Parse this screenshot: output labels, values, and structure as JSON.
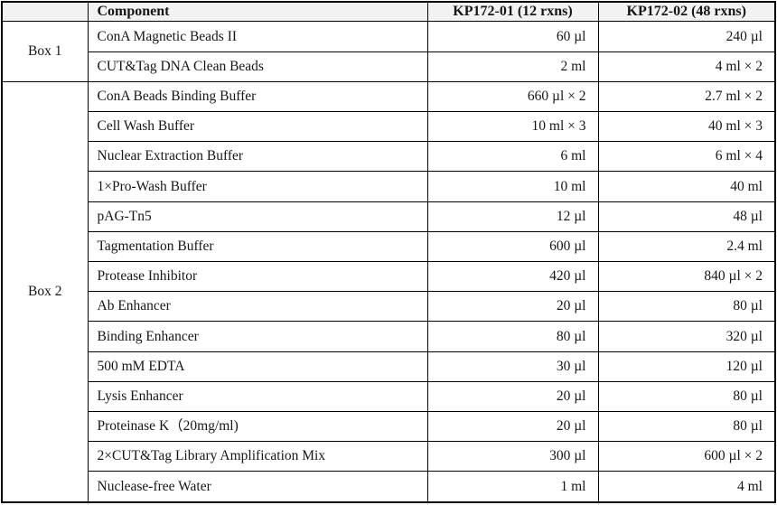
{
  "page": {
    "background_color": "#ffffff",
    "text_color": "#161616",
    "border_color": "#000000",
    "header_bg_color": "#f2f2f2"
  },
  "table": {
    "headers": {
      "box": "",
      "component": "Component",
      "col1": "KP172-01 (12 rxns)",
      "col2": "KP172-02 (48 rxns)"
    },
    "groups": [
      {
        "label": "Box 1",
        "rows": [
          {
            "component": "ConA Magnetic Beads II",
            "kp172_01": "60 µl",
            "kp172_02": "240 µl"
          },
          {
            "component": "CUT&Tag DNA Clean Beads",
            "kp172_01": "2 ml",
            "kp172_02": "4 ml × 2"
          }
        ]
      },
      {
        "label": "Box 2",
        "rows": [
          {
            "component": "ConA Beads Binding Buffer",
            "kp172_01": "660 µl × 2",
            "kp172_02": "2.7 ml × 2"
          },
          {
            "component": "Cell Wash Buffer",
            "kp172_01": "10 ml × 3",
            "kp172_02": "40 ml × 3"
          },
          {
            "component": "Nuclear Extraction Buffer",
            "kp172_01": "6 ml",
            "kp172_02": "6 ml × 4"
          },
          {
            "component": "1×Pro-Wash Buffer",
            "kp172_01": "10 ml",
            "kp172_02": "40 ml"
          },
          {
            "component": "pAG-Tn5",
            "kp172_01": "12 µl",
            "kp172_02": "48 µl"
          },
          {
            "component": "Tagmentation Buffer",
            "kp172_01": "600 µl",
            "kp172_02": "2.4 ml"
          },
          {
            "component": "Protease Inhibitor",
            "kp172_01": "420 µl",
            "kp172_02": "840 µl × 2"
          },
          {
            "component": "Ab Enhancer",
            "kp172_01": "20 µl",
            "kp172_02": "80 µl"
          },
          {
            "component": "Binding Enhancer",
            "kp172_01": "80 µl",
            "kp172_02": "320 µl"
          },
          {
            "component": "500 mM EDTA",
            "kp172_01": "30 µl",
            "kp172_02": "120 µl"
          },
          {
            "component": "Lysis Enhancer",
            "kp172_01": "20 µl",
            "kp172_02": "80 µl"
          },
          {
            "component": "Proteinase K（20mg/ml)",
            "kp172_01": "20 µl",
            "kp172_02": "80 µl"
          },
          {
            "component": "2×CUT&Tag Library Amplification Mix",
            "kp172_01": "300 µl",
            "kp172_02": "600 µl × 2"
          },
          {
            "component": "Nuclease-free Water",
            "kp172_01": "1 ml",
            "kp172_02": "4 ml"
          }
        ]
      }
    ]
  }
}
